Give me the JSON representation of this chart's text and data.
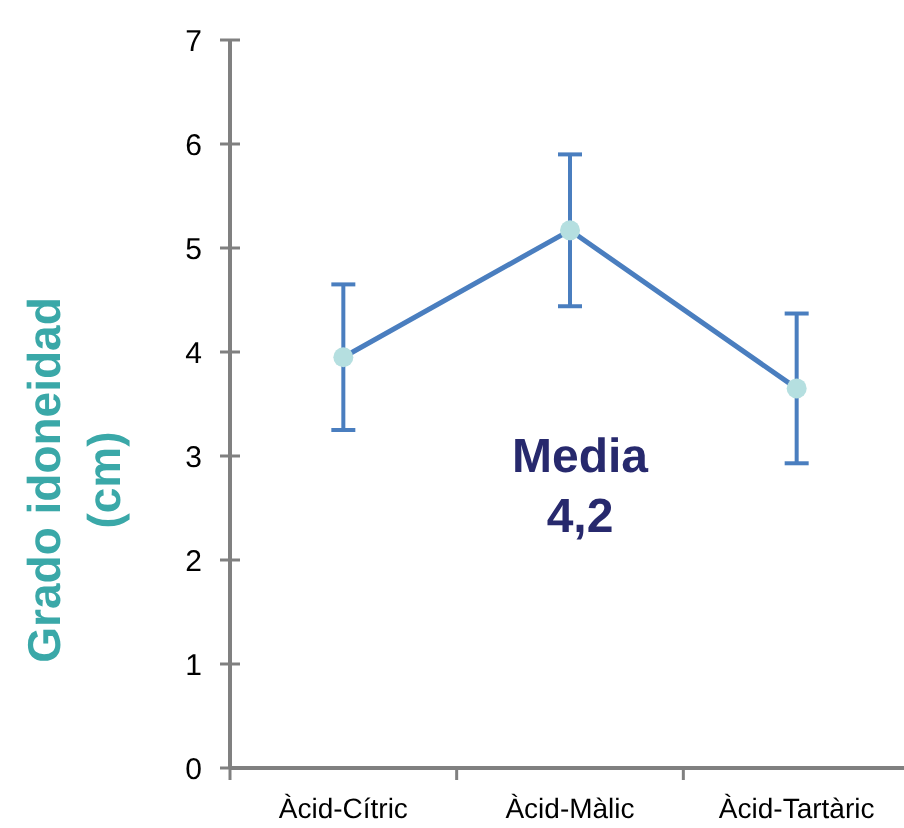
{
  "chart_data": {
    "type": "line",
    "ylabel": "Grado idoneidad (cm)",
    "categories": [
      "Àcid-Cítric",
      "Àcid-Màlic",
      "Àcid-Tartàric"
    ],
    "series": [
      {
        "color": "#4a7ebf",
        "values": [
          3.95,
          5.17,
          3.65
        ],
        "errors": [
          0.7,
          0.73,
          0.72
        ]
      }
    ],
    "marker": "circle",
    "line_style": "solid",
    "ylim": [
      0,
      7
    ],
    "yticks": [
      0,
      1,
      2,
      3,
      4,
      5,
      6,
      7
    ],
    "annotations": [
      "Media\n4,2"
    ]
  }
}
